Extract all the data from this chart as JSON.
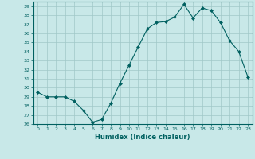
{
  "x": [
    0,
    1,
    2,
    3,
    4,
    5,
    6,
    7,
    8,
    9,
    10,
    11,
    12,
    13,
    14,
    15,
    16,
    17,
    18,
    19,
    20,
    21,
    22,
    23
  ],
  "y": [
    29.5,
    29.0,
    29.0,
    29.0,
    28.5,
    27.5,
    26.2,
    26.5,
    28.3,
    30.5,
    32.5,
    34.5,
    36.5,
    37.2,
    37.3,
    37.8,
    39.2,
    37.7,
    38.8,
    38.5,
    37.2,
    35.2,
    34.0,
    31.2
  ],
  "xlabel": "Humidex (Indice chaleur)",
  "ylim": [
    26,
    39.5
  ],
  "xlim": [
    -0.5,
    23.5
  ],
  "yticks": [
    26,
    27,
    28,
    29,
    30,
    31,
    32,
    33,
    34,
    35,
    36,
    37,
    38,
    39
  ],
  "xticks": [
    0,
    1,
    2,
    3,
    4,
    5,
    6,
    7,
    8,
    9,
    10,
    11,
    12,
    13,
    14,
    15,
    16,
    17,
    18,
    19,
    20,
    21,
    22,
    23
  ],
  "line_color": "#006060",
  "marker_color": "#006060",
  "bg_color": "#c8e8e8",
  "grid_color": "#a0c8c8",
  "xlabel_color": "#006060",
  "tick_color": "#006060",
  "spine_color": "#006060"
}
